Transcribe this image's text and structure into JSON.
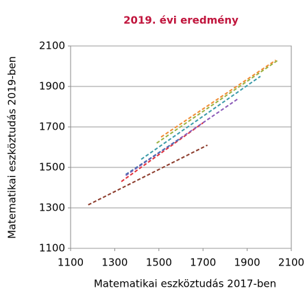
{
  "chart_data": {
    "type": "line",
    "title": "2019. évi eredmény",
    "x_label": "Matematikai eszköztudás 2017-ben",
    "y_label": "Matematikai eszköztudás 2019-ben",
    "series": [
      {
        "color": "#8b3a2a",
        "x": [
          1180,
          1720
        ],
        "values": [
          1315,
          1610
        ]
      },
      {
        "color": "#e0303a",
        "x": [
          1330,
          1700
        ],
        "values": [
          1430,
          1720
        ]
      },
      {
        "color": "#8a5ab8",
        "x": [
          1350,
          1860
        ],
        "values": [
          1460,
          1840
        ]
      },
      {
        "color": "#4a6fb0",
        "x": [
          1350,
          1600
        ],
        "values": [
          1465,
          1645
        ]
      },
      {
        "color": "#3a9aa8",
        "x": [
          1420,
          1960
        ],
        "values": [
          1540,
          1950
        ]
      },
      {
        "color": "#9ab040",
        "x": [
          1490,
          2040
        ],
        "values": [
          1620,
          2030
        ]
      },
      {
        "color": "#f08a30",
        "x": [
          1510,
          2030
        ],
        "values": [
          1650,
          2030
        ]
      }
    ],
    "xlim": [
      1100,
      2100
    ],
    "xticks": [
      1100,
      1300,
      1500,
      1700,
      1900,
      2100
    ],
    "ylim": [
      1100,
      2100
    ],
    "yticks": [
      1100,
      1300,
      1500,
      1700,
      1900,
      2100
    ],
    "grid": "y"
  }
}
